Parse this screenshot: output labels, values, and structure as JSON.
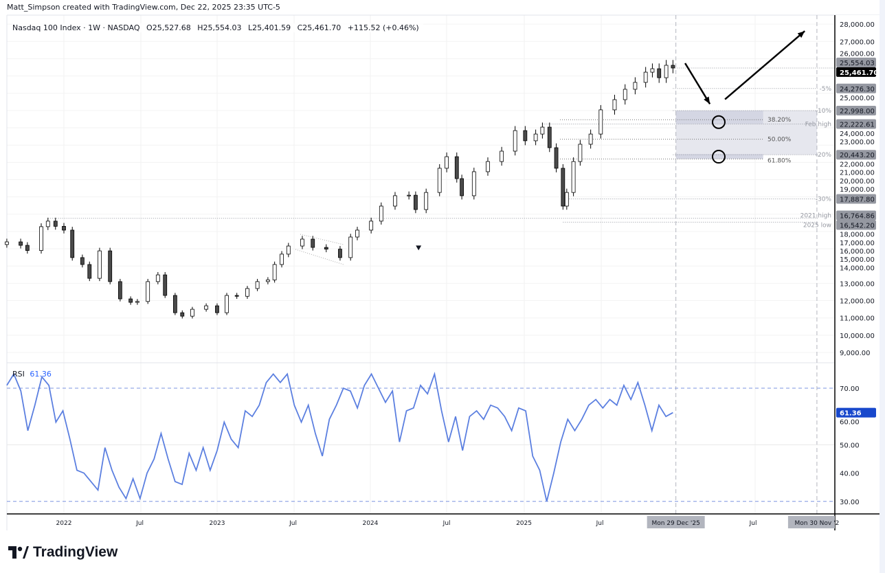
{
  "header": {
    "credit": "Matt_Simpson created with TradingView.com, Dec 22, 2025 23:35 UTC-5",
    "symbol": "Nasdaq 100 Index · 1W · NASDAQ",
    "open": "O25,527.68",
    "high": "H25,554.03",
    "low": "L25,401.59",
    "close": "C25,461.70",
    "change": "+115.52 (+0.46%)"
  },
  "rsi_legend": {
    "label": "RSI",
    "value": "61.36"
  },
  "logo": "TradingView",
  "colors": {
    "up": "#ffffff",
    "down": "#4a4a4a",
    "rsi": "#5b7fe0",
    "badge": "#9598a1",
    "last": "#000000",
    "rsi_badge": "#1848cc",
    "fib_box": "#e6e7ee"
  },
  "chart_data": [
    {
      "type": "candlestick",
      "title": "Nasdaq 100 Index · 1W · NASDAQ",
      "ylim": [
        8500,
        28500
      ],
      "yscale": "linear",
      "y_ticks": [
        "28,000.00",
        "27,000.00",
        "26,000.00",
        "25,000.00",
        "24,000.00",
        "23,000.00",
        "22,000.00",
        "21,000.00",
        "20,000.00",
        "19,000.00",
        "18,000.00",
        "17,000.00",
        "16,000.00",
        "15,000.00",
        "14,000.00",
        "13,000.00",
        "12,000.00",
        "11,000.00",
        "10,000.00",
        "9,000.00"
      ],
      "y_tick_values": [
        28000,
        27000,
        26000,
        25000,
        24000,
        23000,
        22000,
        21000,
        20000,
        19000,
        18000,
        17000,
        16000,
        15000,
        14000,
        13000,
        12000,
        11000,
        10000,
        9000
      ],
      "x_ticks": [
        {
          "label": "2022",
          "date": "2022-01-01"
        },
        {
          "label": "Jul",
          "date": "2022-07-01"
        },
        {
          "label": "2023",
          "date": "2023-01-01"
        },
        {
          "label": "Jul",
          "date": "2023-07-01"
        },
        {
          "label": "2024",
          "date": "2024-01-01"
        },
        {
          "label": "Jul",
          "date": "2024-07-01"
        },
        {
          "label": "2025",
          "date": "2025-01-01"
        },
        {
          "label": "Jul",
          "date": "2025-07-01"
        },
        {
          "label": "Jul",
          "date": "2026-07-01"
        }
      ],
      "x_badges": [
        {
          "label": "Mon 29 Dec '25",
          "date": "2025-12-29"
        },
        {
          "label": "Mon 30 Nov '2",
          "date": "2026-11-30"
        }
      ],
      "closes": [
        [
          "2021-08-18",
          15400
        ],
        [
          "2021-09-20",
          15200
        ],
        [
          "2021-10-06",
          14900
        ],
        [
          "2021-11-08",
          16280
        ],
        [
          "2021-11-24",
          16600
        ],
        [
          "2021-12-12",
          16300
        ],
        [
          "2022-01-01",
          16080
        ],
        [
          "2022-01-21",
          14490
        ],
        [
          "2022-02-14",
          14090
        ],
        [
          "2022-03-03",
          13290
        ],
        [
          "2022-03-27",
          14880
        ],
        [
          "2022-04-21",
          13100
        ],
        [
          "2022-05-15",
          12100
        ],
        [
          "2022-06-09",
          11900
        ],
        [
          "2022-06-25",
          11950
        ],
        [
          "2022-07-20",
          13100
        ],
        [
          "2022-08-13",
          13490
        ],
        [
          "2022-08-30",
          12300
        ],
        [
          "2022-09-23",
          11300
        ],
        [
          "2022-10-10",
          11100
        ],
        [
          "2022-11-03",
          11500
        ],
        [
          "2022-12-06",
          11700
        ],
        [
          "2023-01-01",
          11300
        ],
        [
          "2023-01-24",
          12300
        ],
        [
          "2023-02-17",
          12250
        ],
        [
          "2023-03-14",
          12700
        ],
        [
          "2023-04-07",
          13100
        ],
        [
          "2023-05-02",
          13200
        ],
        [
          "2023-05-18",
          14090
        ],
        [
          "2023-06-04",
          14690
        ],
        [
          "2023-06-20",
          15160
        ],
        [
          "2023-07-23",
          15560
        ],
        [
          "2023-08-17",
          15080
        ],
        [
          "2023-09-18",
          14980
        ],
        [
          "2023-10-21",
          14490
        ],
        [
          "2023-11-15",
          15680
        ],
        [
          "2023-12-01",
          16080
        ],
        [
          "2024-01-03",
          16600
        ],
        [
          "2024-01-27",
          17470
        ],
        [
          "2024-02-29",
          18070
        ],
        [
          "2024-04-02",
          18100
        ],
        [
          "2024-04-18",
          17270
        ],
        [
          "2024-05-13",
          18260
        ],
        [
          "2024-06-14",
          19660
        ],
        [
          "2024-07-01",
          20330
        ],
        [
          "2024-07-25",
          19060
        ],
        [
          "2024-08-06",
          18070
        ],
        [
          "2024-09-04",
          19460
        ],
        [
          "2024-10-07",
          20050
        ],
        [
          "2024-11-09",
          20650
        ],
        [
          "2024-12-11",
          21840
        ],
        [
          "2025-01-04",
          21250
        ],
        [
          "2025-01-29",
          21640
        ],
        [
          "2025-02-14",
          22040
        ],
        [
          "2025-03-03",
          20850
        ],
        [
          "2025-03-19",
          19660
        ],
        [
          "2025-04-04",
          17470
        ],
        [
          "2025-04-13",
          18260
        ],
        [
          "2025-04-29",
          20050
        ],
        [
          "2025-05-15",
          21050
        ],
        [
          "2025-06-09",
          21640
        ],
        [
          "2025-07-03",
          23040
        ],
        [
          "2025-08-05",
          23630
        ],
        [
          "2025-08-30",
          24230
        ],
        [
          "2025-09-23",
          24630
        ],
        [
          "2025-10-18",
          25220
        ],
        [
          "2025-11-03",
          25420
        ],
        [
          "2025-11-19",
          24900
        ],
        [
          "2025-12-06",
          25620
        ],
        [
          "2025-12-22",
          25461.7
        ]
      ],
      "price_badges": [
        {
          "value": 25554.03,
          "label": "25,554.03",
          "style": "gray"
        },
        {
          "value": 25461.7,
          "label": "25,461.70",
          "style": "last"
        },
        {
          "value": 24276.3,
          "label": "24,276.30",
          "style": "gray"
        },
        {
          "value": 22998.0,
          "label": "22,998.00",
          "style": "gray"
        },
        {
          "value": 22222.61,
          "label": "22,222.61",
          "style": "gray"
        },
        {
          "value": 20443.2,
          "label": "20,443.20",
          "style": "gray"
        },
        {
          "value": 17887.8,
          "label": "17,887.80",
          "style": "gray"
        },
        {
          "value": 16764.86,
          "label": "16,764.86",
          "style": "gray"
        },
        {
          "value": 16542.2,
          "label": "16,542.20",
          "style": "gray"
        }
      ],
      "levels": [
        {
          "value": 25461.7,
          "label": "",
          "from": "2025-12-22"
        },
        {
          "value": 24276.3,
          "label": "-5%",
          "from": "2025-12-22"
        },
        {
          "value": 22998.0,
          "label": "-10%",
          "from": "2025-12-22"
        },
        {
          "value": 22222.61,
          "label": "Feb high",
          "from": "2025-02-14"
        },
        {
          "value": 20443.2,
          "label": "-20%",
          "from": "2025-12-22"
        },
        {
          "value": 17887.8,
          "label": "-30%",
          "from": "2025-04-04"
        },
        {
          "value": 16764.86,
          "label": "2021 high",
          "from": "2021-11-24"
        },
        {
          "value": 16542.2,
          "label": "2025 low",
          "from": "2025-04-04"
        }
      ],
      "fib_levels": [
        {
          "value": 22470,
          "label": "38.20%"
        },
        {
          "value": 21340,
          "label": "50.00%"
        },
        {
          "value": 20200,
          "label": "61.80%"
        }
      ],
      "fib_box": {
        "from": "2025-12-29",
        "to": "2026-11-30",
        "top": 22998.0,
        "bottom": 20443.2
      },
      "targets": [
        {
          "date": "2026-04-10",
          "value": 22330
        },
        {
          "date": "2026-04-10",
          "value": 20330
        }
      ],
      "arrows": [
        {
          "from": [
            "2026-01-20",
            25740
          ],
          "to": [
            "2026-03-20",
            23380
          ]
        },
        {
          "from": [
            "2026-04-25",
            23650
          ],
          "to": [
            "2026-11-01",
            27600
          ]
        }
      ],
      "marker": {
        "date": "2024-04-25",
        "value": 15030,
        "shape": "triangle-down"
      }
    },
    {
      "type": "line",
      "title": "RSI",
      "ylim": [
        27,
        78
      ],
      "y_ticks": [
        "70.00",
        "60.00",
        "50.00",
        "40.00",
        "30.00"
      ],
      "y_tick_values": [
        70,
        60,
        50,
        40,
        30
      ],
      "bands": [
        70,
        30
      ],
      "last": "61.36",
      "values": [
        71,
        75,
        69,
        55,
        64,
        74,
        71,
        58,
        62,
        52,
        41,
        40,
        37,
        34,
        49,
        41,
        35,
        31,
        38,
        31,
        40,
        45,
        54,
        45,
        37,
        36,
        47,
        41,
        49,
        41,
        48,
        58,
        52,
        49,
        62,
        60,
        64,
        72,
        75,
        72,
        75,
        64,
        58,
        64,
        54,
        46,
        59,
        64,
        70,
        69,
        63,
        71,
        75,
        70,
        65,
        69,
        51,
        62,
        63,
        71,
        68,
        75,
        62,
        51,
        60,
        48,
        60,
        62,
        59,
        64,
        63,
        60,
        55,
        63,
        62,
        46,
        41,
        30,
        40,
        51,
        59,
        55,
        59,
        64,
        66,
        63,
        66,
        64,
        71,
        66,
        72,
        64,
        55,
        64,
        60,
        61.36
      ]
    }
  ]
}
